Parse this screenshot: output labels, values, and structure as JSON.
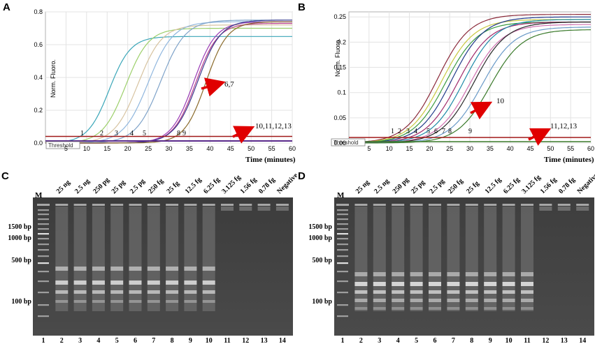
{
  "panels": {
    "A": {
      "letter": "A",
      "ylabel": "Norm. Fluoro.",
      "xlabel": "Time (minutes)",
      "threshold_label": "Threshold",
      "yticks": [
        "0.8",
        "0.6",
        "0.4",
        "0.2",
        "0.0"
      ],
      "xticks": [
        "5",
        "10",
        "15",
        "20",
        "25",
        "30",
        "35",
        "40",
        "45",
        "50",
        "55",
        "60"
      ],
      "curve_labels": [
        "1",
        "2",
        "3",
        "4",
        "5",
        "8",
        "9"
      ],
      "arrow_labels": [
        "6,7",
        "10,11,12,13"
      ]
    },
    "B": {
      "letter": "B",
      "ylabel": "Norm. Fluoro.",
      "xlabel": "Time (minutes)",
      "threshold_label": "Threshold",
      "yticks": [
        "0.25",
        "0.2",
        "0.15",
        "0.1",
        "0.05",
        "0.00"
      ],
      "xticks": [
        "5",
        "10",
        "15",
        "20",
        "25",
        "30",
        "35",
        "40",
        "45",
        "50",
        "55",
        "60"
      ],
      "curve_labels": [
        "1",
        "2",
        "3",
        "4",
        "5",
        "6",
        "7",
        "8",
        "9"
      ],
      "arrow_labels": [
        "10",
        "11,12,13"
      ]
    },
    "C": {
      "letter": "C",
      "marker_label": "M",
      "lane_labels": [
        "25 ng",
        "2.5 ng",
        "250 pg",
        "25 pg",
        "2.5 pg",
        "250 fg",
        "25 fg",
        "12.5 fg",
        "6.25 fg",
        "3.125 fg",
        "1.56 fg",
        "0.78 fg",
        "Negative"
      ],
      "bp_labels": [
        "1500 bp",
        "1000 bp",
        "500 bp",
        "100 bp"
      ],
      "lane_numbers": [
        "1",
        "2",
        "3",
        "4",
        "5",
        "6",
        "7",
        "8",
        "9",
        "10",
        "11",
        "12",
        "13",
        "14"
      ]
    },
    "D": {
      "letter": "D",
      "marker_label": "M",
      "lane_labels": [
        "25 ng",
        "2.5 ng",
        "250 pg",
        "25 pg",
        "2.5 pg",
        "250 fg",
        "25 fg",
        "12.5 fg",
        "6.25 fg",
        "3.125 fg",
        "1.56 fg",
        "0.78 fg",
        "Negative"
      ],
      "bp_labels": [
        "1500 bp",
        "1000 bp",
        "500 bp",
        "100 bp"
      ],
      "lane_numbers": [
        "1",
        "2",
        "3",
        "4",
        "5",
        "6",
        "7",
        "8",
        "9",
        "10",
        "11",
        "12",
        "13",
        "14"
      ]
    }
  },
  "chart_data": [
    {
      "type": "line",
      "panel": "A",
      "xlabel": "Time (minutes)",
      "ylabel": "Norm. Fluoro.",
      "xlim": [
        0,
        60
      ],
      "ylim": [
        0,
        0.8
      ],
      "threshold": 0.03,
      "series": [
        {
          "name": "1",
          "midpoint": 15.5,
          "plateau": 0.65,
          "slope": 2.6,
          "color": "#3aa6b8"
        },
        {
          "name": "2",
          "midpoint": 19.5,
          "plateau": 0.7,
          "slope": 2.8,
          "color": "#9ccf6a"
        },
        {
          "name": "3",
          "midpoint": 22.5,
          "plateau": 0.72,
          "slope": 2.9,
          "color": "#d7c3a0"
        },
        {
          "name": "4",
          "midpoint": 25.0,
          "plateau": 0.74,
          "slope": 3.0,
          "color": "#8fb6de"
        },
        {
          "name": "5",
          "midpoint": 28.0,
          "plateau": 0.75,
          "slope": 3.0,
          "color": "#7fa3c9"
        },
        {
          "name": "6",
          "midpoint": 36.0,
          "plateau": 0.74,
          "slope": 2.7,
          "color": "#9b3cb6"
        },
        {
          "name": "7",
          "midpoint": 36.5,
          "plateau": 0.73,
          "slope": 2.7,
          "color": "#b93d8a"
        },
        {
          "name": "8",
          "midpoint": 37.0,
          "plateau": 0.75,
          "slope": 2.8,
          "color": "#3b3b8f"
        },
        {
          "name": "9",
          "midpoint": 39.0,
          "plateau": 0.74,
          "slope": 2.6,
          "color": "#8a6a2a"
        }
      ]
    },
    {
      "type": "line",
      "panel": "B",
      "xlabel": "Time (minutes)",
      "ylabel": "Norm. Fluoro.",
      "xlim": [
        0,
        60
      ],
      "ylim": [
        0,
        0.26
      ],
      "threshold": 0.01,
      "series": [
        {
          "name": "1",
          "midpoint": 22.0,
          "plateau": 0.255,
          "slope": 4.0,
          "color": "#8b2a3a"
        },
        {
          "name": "2",
          "midpoint": 23.0,
          "plateau": 0.245,
          "slope": 4.0,
          "color": "#c8c840"
        },
        {
          "name": "3",
          "midpoint": 24.0,
          "plateau": 0.24,
          "slope": 4.0,
          "color": "#3a9a40"
        },
        {
          "name": "4",
          "midpoint": 25.5,
          "plateau": 0.25,
          "slope": 4.0,
          "color": "#203a8a"
        },
        {
          "name": "5",
          "midpoint": 27.0,
          "plateau": 0.24,
          "slope": 4.0,
          "color": "#a02a6a"
        },
        {
          "name": "6",
          "midpoint": 28.5,
          "plateau": 0.245,
          "slope": 4.0,
          "color": "#1e8aa8"
        },
        {
          "name": "7",
          "midpoint": 30.0,
          "plateau": 0.235,
          "slope": 4.0,
          "color": "#d070b0"
        },
        {
          "name": "8",
          "midpoint": 31.0,
          "plateau": 0.24,
          "slope": 4.0,
          "color": "#2a2a2a"
        },
        {
          "name": "9",
          "midpoint": 33.0,
          "plateau": 0.23,
          "slope": 4.0,
          "color": "#6a9ac8"
        },
        {
          "name": "10",
          "midpoint": 35.0,
          "plateau": 0.225,
          "slope": 4.0,
          "color": "#3a7a2a"
        }
      ]
    }
  ]
}
